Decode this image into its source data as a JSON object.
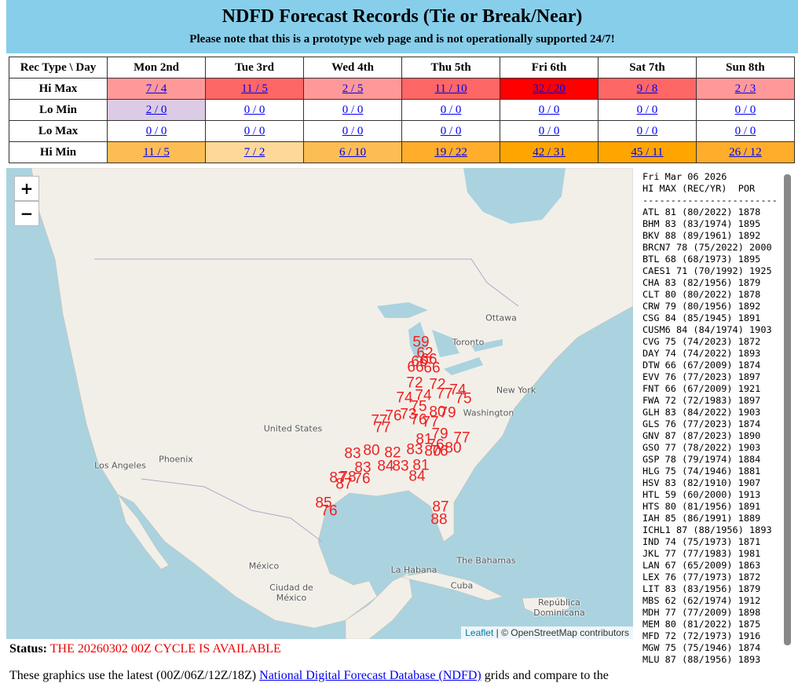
{
  "header": {
    "title": "NDFD Forecast Records (Tie or Break/Near)",
    "subtitle": "Please note that this is a prototype web page and is not operationally supported 24/7!"
  },
  "table": {
    "columns": [
      "Rec Type \\ Day",
      "Mon 2nd",
      "Tue 3rd",
      "Wed 4th",
      "Thu 5th",
      "Fri 6th",
      "Sat 7th",
      "Sun 8th"
    ],
    "rows": [
      {
        "label": "Hi Max",
        "cells": [
          "7 / 4",
          "11 / 5",
          "2 / 5",
          "11 / 10",
          "32 / 20",
          "9 / 8",
          "2 / 3"
        ],
        "colors": [
          "#ff9999",
          "#ff6666",
          "#ff9999",
          "#ff6666",
          "#ff0000",
          "#ff6666",
          "#ff9999"
        ]
      },
      {
        "label": "Lo Min",
        "cells": [
          "2 / 0",
          "0 / 0",
          "0 / 0",
          "0 / 0",
          "0 / 0",
          "0 / 0",
          "0 / 0"
        ],
        "colors": [
          "#dccbe4",
          "#ffffff",
          "#ffffff",
          "#ffffff",
          "#ffffff",
          "#ffffff",
          "#ffffff"
        ]
      },
      {
        "label": "Lo Max",
        "cells": [
          "0 / 0",
          "0 / 0",
          "0 / 0",
          "0 / 0",
          "0 / 0",
          "0 / 0",
          "0 / 0"
        ],
        "colors": [
          "#ffffff",
          "#ffffff",
          "#ffffff",
          "#ffffff",
          "#ffffff",
          "#ffffff",
          "#ffffff"
        ]
      },
      {
        "label": "Hi Min",
        "cells": [
          "11 / 5",
          "7 / 2",
          "6 / 10",
          "19 / 22",
          "42 / 31",
          "45 / 11",
          "26 / 12"
        ],
        "colors": [
          "#fdbd55",
          "#fdd899",
          "#fdbd55",
          "#ffad2a",
          "#ffa500",
          "#ffa500",
          "#ffad2a"
        ]
      }
    ]
  },
  "map": {
    "zoom_in": "+",
    "zoom_out": "−",
    "places": [
      "Ottawa",
      "Toronto",
      "New York",
      "Washington",
      "United States",
      "Phoenix",
      "Los Angeles",
      "México",
      "La Habana",
      "The Bahamas",
      "Cuba",
      "Ciudad de México",
      "República Dominicana"
    ],
    "records": [
      "59",
      "62",
      "66",
      "66",
      "66",
      "66",
      "72",
      "72",
      "74",
      "74",
      "77",
      "74",
      "75",
      "77",
      "77",
      "76",
      "73",
      "75",
      "80",
      "79",
      "76",
      "77",
      "81",
      "79",
      "77",
      "76",
      "80",
      "76",
      "83",
      "80",
      "82",
      "83",
      "80",
      "83",
      "84",
      "83",
      "81",
      "87",
      "78",
      "76",
      "87",
      "84",
      "85",
      "76",
      "87",
      "88"
    ],
    "attribution": {
      "leaflet": "Leaflet",
      "osm": "| © OpenStreetMap contributors"
    }
  },
  "panel": {
    "lines": [
      "Fri Mar 06 2026",
      "HI MAX (REC/YR)  POR",
      "------------------------",
      "ATL 81 (80/2022) 1878",
      "BHM 83 (83/1974) 1895",
      "BKV 88 (89/1961) 1892",
      "BRCN7 78 (75/2022) 2000",
      "BTL 68 (68/1973) 1895",
      "CAES1 71 (70/1992) 1925",
      "CHA 83 (82/1956) 1879",
      "CLT 80 (80/2022) 1878",
      "CRW 79 (80/1956) 1892",
      "CSG 84 (85/1945) 1891",
      "CUSM6 84 (84/1974) 1903",
      "CVG 75 (74/2023) 1872",
      "DAY 74 (74/2022) 1893",
      "DTW 66 (67/2009) 1874",
      "EVV 76 (77/2023) 1897",
      "FNT 66 (67/2009) 1921",
      "FWA 72 (72/1983) 1897",
      "GLH 83 (84/2022) 1903",
      "GLS 76 (77/2023) 1874",
      "GNV 87 (87/2023) 1890",
      "GSO 77 (78/2022) 1903",
      "GSP 78 (79/1974) 1884",
      "HLG 75 (74/1946) 1881",
      "HSV 83 (82/1910) 1907",
      "HTL 59 (60/2000) 1913",
      "HTS 80 (81/1956) 1891",
      "IAH 85 (86/1991) 1889",
      "ICHL1 87 (88/1956) 1893",
      "IND 74 (75/1973) 1871",
      "JKL 77 (77/1983) 1981",
      "LAN 67 (65/2009) 1863",
      "LEX 76 (77/1973) 1872",
      "LIT 83 (83/1956) 1879",
      "MBS 62 (62/1974) 1912",
      "MDH 77 (77/2009) 1898",
      "MEM 80 (81/2022) 1875",
      "MFD 72 (72/1973) 1916",
      "MGW 75 (75/1946) 1874",
      "MLU 87 (88/1956) 1893"
    ]
  },
  "status": {
    "label": "Status:",
    "text": "THE 20260302 00Z CYCLE IS AVAILABLE"
  },
  "footer": {
    "before": "These graphics use the latest (00Z/06Z/12Z/18Z)",
    "link": "National Digital Forecast Database (NDFD)",
    "after": "grids and compare to the"
  }
}
